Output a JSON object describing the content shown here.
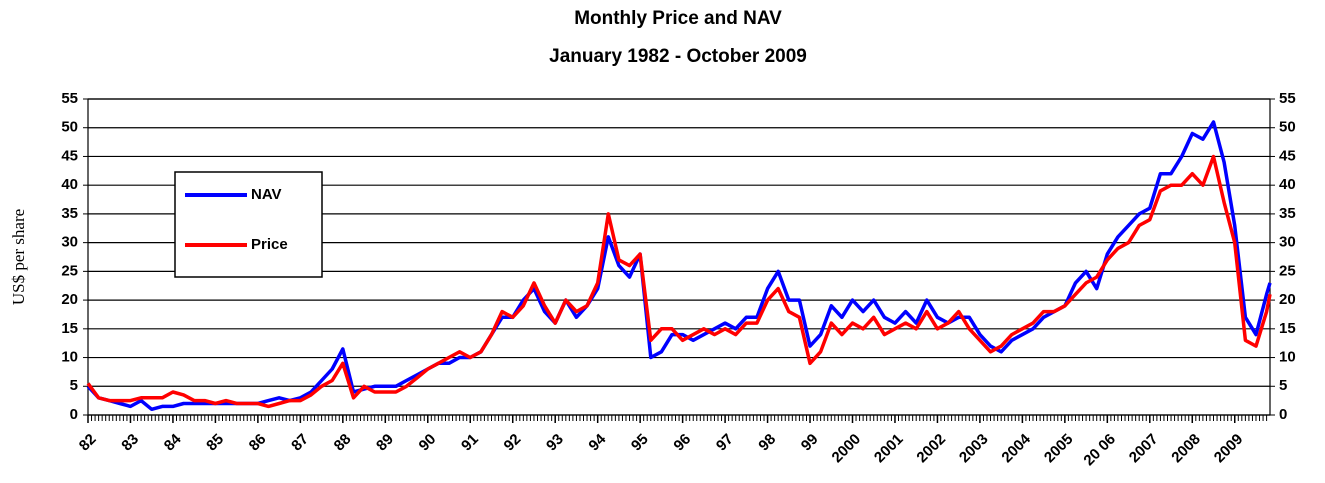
{
  "chart_data": {
    "type": "line",
    "title": "Monthly Price and NAV",
    "subtitle": "January 1982 - October 2009",
    "ylabel": "US$ per share",
    "legend": "left",
    "grid": true,
    "xlim": [
      1982,
      2009.83
    ],
    "ylim": [
      0,
      55
    ],
    "yticks": [
      0,
      5,
      10,
      15,
      20,
      25,
      30,
      35,
      40,
      45,
      50,
      55
    ],
    "y2lim": [
      0,
      55
    ],
    "y2ticks": [
      0,
      5,
      10,
      15,
      20,
      25,
      30,
      35,
      40,
      45,
      50,
      55
    ],
    "xticks": [
      {
        "value": 1982,
        "label": "82"
      },
      {
        "value": 1983,
        "label": "83"
      },
      {
        "value": 1984,
        "label": "84"
      },
      {
        "value": 1985,
        "label": "85"
      },
      {
        "value": 1986,
        "label": "86"
      },
      {
        "value": 1987,
        "label": "87"
      },
      {
        "value": 1988,
        "label": "88"
      },
      {
        "value": 1989,
        "label": "89"
      },
      {
        "value": 1990,
        "label": "90"
      },
      {
        "value": 1991,
        "label": "91"
      },
      {
        "value": 1992,
        "label": "92"
      },
      {
        "value": 1993,
        "label": "93"
      },
      {
        "value": 1994,
        "label": "94"
      },
      {
        "value": 1995,
        "label": "95"
      },
      {
        "value": 1996,
        "label": "96"
      },
      {
        "value": 1997,
        "label": "97"
      },
      {
        "value": 1998,
        "label": "98"
      },
      {
        "value": 1999,
        "label": "99"
      },
      2000,
      2001,
      2002,
      2003,
      2004,
      2005,
      {
        "value": 2006,
        "label": "20 06"
      },
      2007,
      2008,
      2009
    ],
    "x": [
      1982,
      1982.25,
      1982.5,
      1982.75,
      1983,
      1983.25,
      1983.5,
      1983.75,
      1984,
      1984.25,
      1984.5,
      1984.75,
      1985,
      1985.25,
      1985.5,
      1985.75,
      1986,
      1986.25,
      1986.5,
      1986.75,
      1987,
      1987.25,
      1987.5,
      1987.75,
      1988,
      1988.25,
      1988.5,
      1988.75,
      1989,
      1989.25,
      1989.5,
      1989.75,
      1990,
      1990.25,
      1990.5,
      1990.75,
      1991,
      1991.25,
      1991.5,
      1991.75,
      1992,
      1992.25,
      1992.5,
      1992.75,
      1993,
      1993.25,
      1993.5,
      1993.75,
      1994,
      1994.25,
      1994.5,
      1994.75,
      1995,
      1995.25,
      1995.5,
      1995.75,
      1996,
      1996.25,
      1996.5,
      1996.75,
      1997,
      1997.25,
      1997.5,
      1997.75,
      1998,
      1998.25,
      1998.5,
      1998.75,
      1999,
      1999.25,
      1999.5,
      1999.75,
      2000,
      2000.25,
      2000.5,
      2000.75,
      2001,
      2001.25,
      2001.5,
      2001.75,
      2002,
      2002.25,
      2002.5,
      2002.75,
      2003,
      2003.25,
      2003.5,
      2003.75,
      2004,
      2004.25,
      2004.5,
      2004.75,
      2005,
      2005.25,
      2005.5,
      2005.75,
      2006,
      2006.25,
      2006.5,
      2006.75,
      2007,
      2007.25,
      2007.5,
      2007.75,
      2008,
      2008.25,
      2008.5,
      2008.75,
      2009,
      2009.25,
      2009.5,
      2009.75,
      2009.83
    ],
    "series": [
      {
        "name": "NAV",
        "color": "#0000ff",
        "values": [
          5,
          3,
          2.5,
          2,
          1.5,
          2.5,
          1,
          1.5,
          1.5,
          2,
          2,
          2,
          2,
          2,
          2,
          2,
          2,
          2.5,
          3,
          2.5,
          3,
          4,
          6,
          8,
          11.5,
          4,
          4.5,
          5,
          5,
          5,
          6,
          7,
          8,
          9,
          9,
          10,
          10,
          11,
          14,
          17,
          17,
          20,
          22,
          18,
          16,
          20,
          17,
          19,
          22,
          31,
          26,
          24,
          28,
          10,
          11,
          14,
          14,
          13,
          14,
          15,
          16,
          15,
          17,
          17,
          22,
          25,
          20,
          20,
          12,
          14,
          19,
          17,
          20,
          18,
          20,
          17,
          16,
          18,
          16,
          20,
          17,
          16,
          17,
          17,
          14,
          12,
          11,
          13,
          14,
          15,
          17,
          18,
          19,
          23,
          25,
          22,
          28,
          31,
          33,
          35,
          36,
          42,
          42,
          45,
          49,
          48,
          51,
          44,
          33,
          17,
          14,
          21,
          23
        ]
      },
      {
        "name": "Price",
        "color": "#ff0000",
        "values": [
          5.5,
          3,
          2.5,
          2.5,
          2.5,
          3,
          3,
          3,
          4,
          3.5,
          2.5,
          2.5,
          2,
          2.5,
          2,
          2,
          2,
          1.5,
          2,
          2.5,
          2.5,
          3.5,
          5,
          6,
          9,
          3,
          5,
          4,
          4,
          4,
          5,
          6.5,
          8,
          9,
          10,
          11,
          10,
          11,
          14,
          18,
          17,
          19,
          23,
          19,
          16,
          20,
          18,
          19,
          23,
          35,
          27,
          26,
          28,
          13,
          15,
          15,
          13,
          14,
          15,
          14,
          15,
          14,
          16,
          16,
          20,
          22,
          18,
          17,
          9,
          11,
          16,
          14,
          16,
          15,
          17,
          14,
          15,
          16,
          15,
          18,
          15,
          16,
          18,
          15,
          13,
          11,
          12,
          14,
          15,
          16,
          18,
          18,
          19,
          21,
          23,
          24,
          27,
          29,
          30,
          33,
          34,
          39,
          40,
          40,
          42,
          40,
          45,
          37,
          30,
          13,
          12,
          18,
          21
        ]
      }
    ]
  }
}
